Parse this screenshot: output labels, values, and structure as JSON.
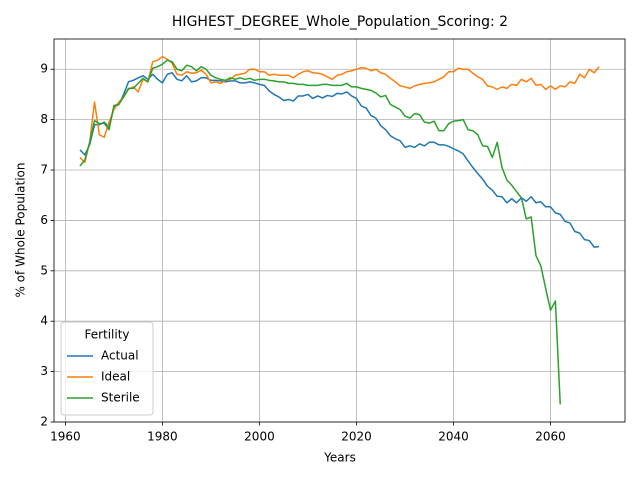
{
  "chart_data": {
    "type": "line",
    "title": "HIGHEST_DEGREE_Whole_Population_Scoring: 2",
    "x_label": "Years",
    "y_label": "% of Whole Population",
    "x": [
      1963,
      1964,
      1965,
      1966,
      1967,
      1968,
      1969,
      1970,
      1971,
      1972,
      1973,
      1974,
      1975,
      1976,
      1977,
      1978,
      1979,
      1980,
      1981,
      1982,
      1983,
      1984,
      1985,
      1986,
      1987,
      1988,
      1989,
      1990,
      1991,
      1992,
      1993,
      1994,
      1995,
      1996,
      1997,
      1998,
      1999,
      2000,
      2001,
      2002,
      2003,
      2004,
      2005,
      2006,
      2007,
      2008,
      2009,
      2010,
      2011,
      2012,
      2013,
      2014,
      2015,
      2016,
      2017,
      2018,
      2019,
      2020,
      2021,
      2022,
      2023,
      2024,
      2025,
      2026,
      2027,
      2028,
      2029,
      2030,
      2031,
      2032,
      2033,
      2034,
      2035,
      2036,
      2037,
      2038,
      2039,
      2040,
      2041,
      2042,
      2043,
      2044,
      2045,
      2046,
      2047,
      2048,
      2049,
      2050,
      2051,
      2052,
      2053,
      2054,
      2055,
      2056,
      2057,
      2058,
      2059,
      2060,
      2061,
      2062,
      2063,
      2064,
      2065,
      2066,
      2067,
      2068,
      2069,
      2070
    ],
    "series": [
      {
        "name": "Actual",
        "color": "#1f77b4",
        "values": [
          7.4,
          7.3,
          7.5,
          7.9,
          7.9,
          7.95,
          7.85,
          8.25,
          8.3,
          8.5,
          8.75,
          8.78,
          8.83,
          8.87,
          8.8,
          8.9,
          8.8,
          8.73,
          8.9,
          8.93,
          8.8,
          8.77,
          8.87,
          8.75,
          8.77,
          8.83,
          8.83,
          8.78,
          8.78,
          8.77,
          8.75,
          8.77,
          8.77,
          8.73,
          8.73,
          8.75,
          8.73,
          8.7,
          8.68,
          8.57,
          8.5,
          8.45,
          8.38,
          8.4,
          8.37,
          8.47,
          8.47,
          8.5,
          8.42,
          8.47,
          8.43,
          8.48,
          8.46,
          8.52,
          8.51,
          8.55,
          8.47,
          8.42,
          8.27,
          8.23,
          8.08,
          8.03,
          7.88,
          7.8,
          7.68,
          7.62,
          7.58,
          7.45,
          7.48,
          7.45,
          7.52,
          7.48,
          7.55,
          7.55,
          7.5,
          7.5,
          7.47,
          7.42,
          7.38,
          7.32,
          7.18,
          7.05,
          6.93,
          6.82,
          6.68,
          6.6,
          6.48,
          6.47,
          6.35,
          6.43,
          6.35,
          6.45,
          6.38,
          6.47,
          6.35,
          6.37,
          6.27,
          6.27,
          6.15,
          6.12,
          5.98,
          5.95,
          5.78,
          5.75,
          5.62,
          5.6,
          5.47,
          5.48
        ]
      },
      {
        "name": "Ideal",
        "color": "#ff7f0e",
        "values": [
          7.25,
          7.15,
          7.55,
          8.35,
          7.7,
          7.65,
          7.95,
          8.2,
          8.35,
          8.45,
          8.6,
          8.65,
          8.55,
          8.8,
          8.75,
          9.15,
          9.18,
          9.25,
          9.2,
          9.12,
          8.9,
          8.88,
          8.95,
          8.92,
          8.93,
          8.98,
          8.9,
          8.73,
          8.75,
          8.72,
          8.78,
          8.8,
          8.88,
          8.9,
          8.92,
          9.0,
          9.0,
          8.95,
          8.95,
          8.88,
          8.9,
          8.88,
          8.88,
          8.88,
          8.83,
          8.9,
          8.95,
          8.97,
          8.93,
          8.92,
          8.9,
          8.85,
          8.8,
          8.88,
          8.9,
          8.95,
          8.97,
          9.0,
          9.03,
          9.02,
          8.97,
          9.0,
          8.93,
          8.9,
          8.82,
          8.75,
          8.67,
          8.65,
          8.62,
          8.67,
          8.7,
          8.72,
          8.73,
          8.75,
          8.8,
          8.85,
          8.95,
          8.95,
          9.02,
          9.0,
          9.0,
          8.92,
          8.85,
          8.8,
          8.67,
          8.65,
          8.6,
          8.65,
          8.62,
          8.7,
          8.68,
          8.8,
          8.75,
          8.82,
          8.68,
          8.7,
          8.6,
          8.67,
          8.6,
          8.67,
          8.65,
          8.75,
          8.72,
          8.9,
          8.83,
          9.0,
          8.93,
          9.05
        ]
      },
      {
        "name": "Sterile",
        "color": "#2ca02c",
        "values": [
          7.08,
          7.2,
          7.55,
          7.98,
          7.92,
          7.93,
          7.8,
          8.28,
          8.3,
          8.45,
          8.62,
          8.62,
          8.72,
          8.82,
          8.75,
          9.02,
          9.05,
          9.1,
          9.18,
          9.15,
          9.0,
          8.97,
          9.08,
          9.05,
          8.97,
          9.05,
          9.0,
          8.88,
          8.83,
          8.8,
          8.78,
          8.83,
          8.8,
          8.83,
          8.8,
          8.82,
          8.78,
          8.8,
          8.8,
          8.78,
          8.77,
          8.75,
          8.75,
          8.72,
          8.72,
          8.7,
          8.7,
          8.68,
          8.68,
          8.68,
          8.7,
          8.7,
          8.68,
          8.68,
          8.68,
          8.72,
          8.65,
          8.65,
          8.62,
          8.6,
          8.58,
          8.53,
          8.45,
          8.48,
          8.3,
          8.25,
          8.2,
          8.07,
          8.03,
          8.12,
          8.1,
          7.95,
          7.93,
          7.97,
          7.78,
          7.78,
          7.92,
          7.97,
          7.98,
          8.0,
          7.8,
          7.78,
          7.7,
          7.48,
          7.47,
          7.25,
          7.55,
          7.05,
          6.8,
          6.7,
          6.57,
          6.45,
          6.03,
          6.07,
          5.3,
          5.1,
          4.65,
          4.22,
          4.4,
          2.35,
          null,
          null,
          null,
          null,
          null,
          null,
          null,
          null
        ]
      }
    ],
    "xlim": [
      1957.65,
      2075.35
    ],
    "ylim": [
      2.0,
      9.6
    ],
    "xticks": [
      1960,
      1980,
      2000,
      2020,
      2040,
      2060
    ],
    "yticks": [
      2,
      3,
      4,
      5,
      6,
      7,
      8,
      9
    ],
    "grid": true,
    "legend": {
      "title": "Fertility",
      "position": "lower left"
    }
  }
}
